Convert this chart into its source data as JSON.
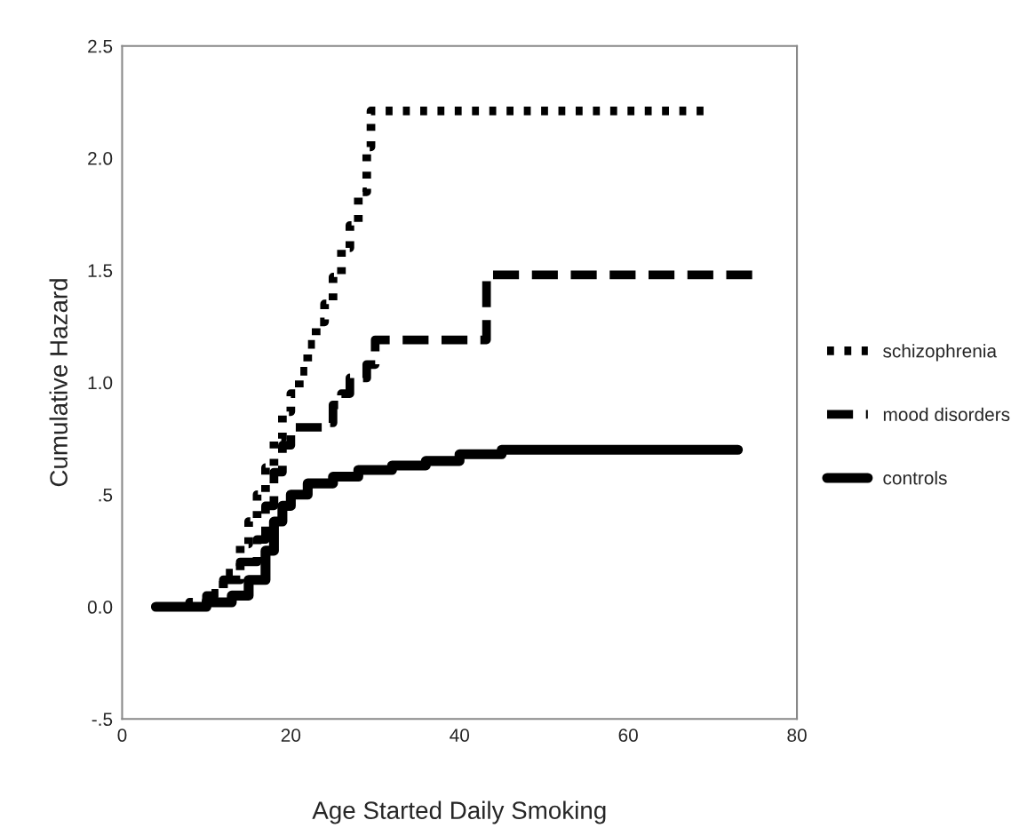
{
  "chart_data": {
    "type": "step",
    "xlabel": "Age Started Daily Smoking",
    "ylabel": "Cumulative Hazard",
    "xlim": [
      0,
      80
    ],
    "xticks": [
      0,
      20,
      40,
      60,
      80
    ],
    "ylim": [
      -0.5,
      2.5
    ],
    "yticks": [
      {
        "value": -0.5,
        "label": "-.5"
      },
      {
        "value": 0,
        "label": "0.0"
      },
      {
        "value": 0.5,
        "label": ".5"
      },
      {
        "value": 1.0,
        "label": "1.0"
      },
      {
        "value": 1.5,
        "label": "1.5"
      },
      {
        "value": 2.0,
        "label": "2.0"
      },
      {
        "value": 2.5,
        "label": "2.5"
      }
    ],
    "grid": false,
    "legend": "right",
    "marker": "none",
    "series": [
      {
        "name": "schizophrenia",
        "color": "#000000",
        "line_style": "dotted",
        "x": [
          4,
          8,
          10,
          12,
          14,
          15,
          16,
          17,
          18,
          19,
          20,
          21,
          22,
          23,
          24,
          25,
          26,
          27,
          28,
          29,
          29.5,
          69
        ],
        "values": [
          0,
          0.02,
          0.06,
          0.15,
          0.28,
          0.38,
          0.5,
          0.62,
          0.75,
          0.87,
          0.95,
          1.05,
          1.17,
          1.27,
          1.35,
          1.47,
          1.6,
          1.7,
          1.85,
          2.05,
          2.21,
          2.21
        ]
      },
      {
        "name": "mood disorders",
        "color": "#000000",
        "line_style": "dashed",
        "x": [
          5,
          10,
          12,
          14,
          16,
          17,
          18,
          19,
          20,
          24,
          25,
          26,
          27,
          29,
          30,
          43.2,
          75.5
        ],
        "values": [
          0,
          0.05,
          0.12,
          0.2,
          0.3,
          0.45,
          0.6,
          0.72,
          0.8,
          0.82,
          0.9,
          0.95,
          1.02,
          1.08,
          1.19,
          1.48,
          1.48
        ]
      },
      {
        "name": "controls",
        "color": "#000000",
        "line_style": "solid",
        "x": [
          4,
          10,
          13,
          15,
          17,
          18,
          19,
          20,
          22,
          25,
          28,
          32,
          36,
          40,
          45,
          73
        ],
        "values": [
          0,
          0.02,
          0.05,
          0.12,
          0.25,
          0.38,
          0.45,
          0.5,
          0.55,
          0.58,
          0.61,
          0.63,
          0.65,
          0.68,
          0.7,
          0.7
        ]
      }
    ]
  }
}
